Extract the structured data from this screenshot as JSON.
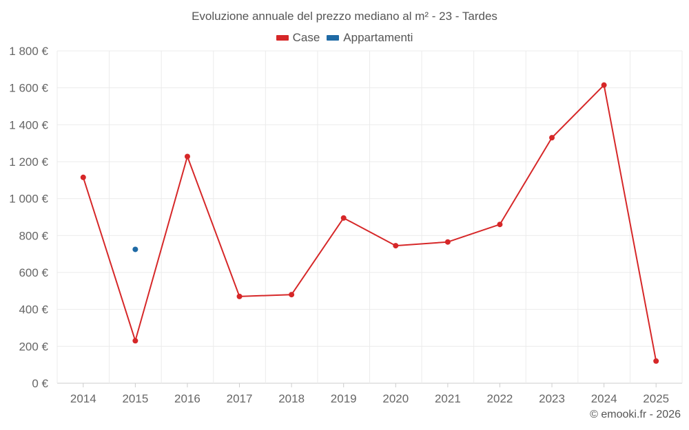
{
  "chart_data": {
    "type": "line",
    "title": "Evoluzione annuale del prezzo mediano al m² - 23 - Tardes",
    "categories": [
      "2014",
      "2015",
      "2016",
      "2017",
      "2018",
      "2019",
      "2020",
      "2021",
      "2022",
      "2023",
      "2024",
      "2025"
    ],
    "series": [
      {
        "name": "Case",
        "color": "#d62728",
        "values": [
          1115,
          230,
          1228,
          470,
          480,
          895,
          745,
          765,
          860,
          1330,
          1615,
          120
        ]
      },
      {
        "name": "Appartamenti",
        "color": "#1f6aa5",
        "values": [
          null,
          725,
          null,
          null,
          null,
          null,
          null,
          null,
          null,
          null,
          null,
          null
        ]
      }
    ],
    "ylim": [
      0,
      1800
    ],
    "yticks": [
      0,
      200,
      400,
      600,
      800,
      1000,
      1200,
      1400,
      1600,
      1800
    ],
    "ytick_labels": [
      "0 €",
      "200 €",
      "400 €",
      "600 €",
      "800 €",
      "1 000 €",
      "1 200 €",
      "1 400 €",
      "1 600 €",
      "1 800 €"
    ],
    "grid": true,
    "legend_position": "top-center"
  },
  "footer": {
    "copyright": "© emooki.fr - 2026"
  }
}
